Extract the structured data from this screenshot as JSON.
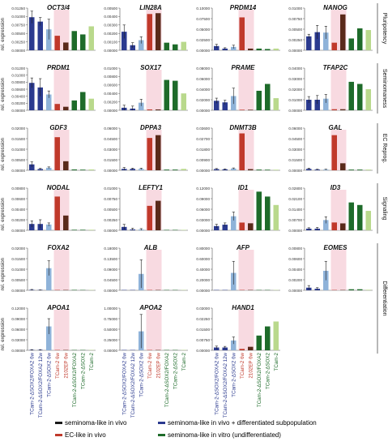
{
  "colors": {
    "seminoma_in_vivo": "#1a1a1a",
    "diff_blue": "#2b3a8f",
    "light_blue": "#8fb3d9",
    "ec_red": "#c0392b",
    "ec_pink_bg": "#f7d4dc",
    "green_dark": "#1e6b2a",
    "green_light": "#b9d98c"
  },
  "chart_data": {
    "type": "bar",
    "ylabel": "rel. expression",
    "categories": [
      "TCam-2-ΔSOX2/FOXA2 6w",
      "TCam-2-ΔSOX2/FOXA2 12w",
      "TCam-2-ΔSOX2 6w",
      "TCam-2 6w",
      "2102EP 6w",
      "TCam-2-ΔSOX2/FOXA2",
      "TCam-2-ΔSOX2",
      "TCam-2"
    ],
    "category_colors": [
      "#2b3a8f",
      "#2b3a8f",
      "#2b3a8f",
      "#c0392b",
      "#c0392b",
      "#1e6b2a",
      "#1e6b2a",
      "#1e6b2a"
    ],
    "groups": [
      "Pluripotency",
      "Seminomaness",
      "EC Reprog.",
      "Signaling",
      "Differentiation"
    ],
    "panels": [
      {
        "gene": "OCT3/4",
        "ylim": [
          0,
          0.0125
        ],
        "ticks": [
          "0.00000",
          "0.00250",
          "0.00500",
          "0.00750",
          "0.01000",
          "0.01250"
        ],
        "values": [
          0.0098,
          0.0085,
          0.0062,
          0.0043,
          0.0023,
          0.0057,
          0.0047,
          0.0071
        ],
        "errors": [
          0.0018,
          0.0012,
          0.003,
          0,
          0,
          0,
          0,
          0
        ]
      },
      {
        "gene": "LIN28A",
        "ylim": [
          0,
          0.005
        ],
        "ticks": [
          "0.00000",
          "0.00100",
          "0.00200",
          "0.00300",
          "0.00400",
          "0.00500"
        ],
        "values": [
          0.0022,
          0.0006,
          0.0012,
          0.0043,
          0.0044,
          0.0009,
          0.0007,
          0.001
        ],
        "errors": [
          0.0008,
          0.0003,
          0.0004,
          0,
          0,
          0,
          0,
          0
        ]
      },
      {
        "gene": "PRDM14",
        "ylim": [
          0,
          0.1
        ],
        "ticks": [
          "0.00000",
          "0.02500",
          "0.05000",
          "0.07500",
          "0.10000"
        ],
        "values": [
          0.01,
          0.004,
          0.008,
          0.078,
          0.004,
          0.004,
          0.003,
          0.004
        ],
        "errors": [
          0.004,
          0.002,
          0.004,
          0,
          0,
          0,
          0,
          0
        ]
      },
      {
        "gene": "NANOG",
        "ylim": [
          0,
          0.01
        ],
        "ticks": [
          "0.00000",
          "0.00250",
          "0.00500",
          "0.00750",
          "0.01000"
        ],
        "values": [
          0.0033,
          0.0043,
          0.0042,
          0.0018,
          0.0085,
          0.0028,
          0.0052,
          0.0048
        ],
        "errors": [
          0.0005,
          0.0016,
          0.0015,
          0,
          0,
          0,
          0,
          0
        ]
      },
      {
        "gene": "PRDM1",
        "ylim": [
          0,
          0.012
        ],
        "ticks": [
          "0.00000",
          "0.00200",
          "0.00400",
          "0.00600",
          "0.00800",
          "0.01000",
          "0.01200"
        ],
        "values": [
          0.0078,
          0.0065,
          0.0045,
          0.0018,
          0.001,
          0.0028,
          0.0052,
          0.0033
        ],
        "errors": [
          0.0014,
          0.0025,
          0.001,
          0,
          0,
          0,
          0,
          0
        ]
      },
      {
        "gene": "SOX17",
        "ylim": [
          0,
          0.01
        ],
        "ticks": [
          "0.00000",
          "0.00200",
          "0.00400",
          "0.00600",
          "0.00800",
          "0.01000"
        ],
        "values": [
          0.0006,
          0.0004,
          0.0018,
          0.0002,
          0.0002,
          0.0072,
          0.007,
          0.004
        ],
        "errors": [
          0.0006,
          0.0006,
          0.0008,
          0,
          0,
          0,
          0,
          0
        ]
      },
      {
        "gene": "PRAME",
        "ylim": [
          0,
          0.08
        ],
        "ticks": [
          "0.00000",
          "0.02000",
          "0.04000",
          "0.06000",
          "0.08000"
        ],
        "values": [
          0.018,
          0.015,
          0.027,
          0.001,
          0.001,
          0.037,
          0.05,
          0.023
        ],
        "errors": [
          0.005,
          0.004,
          0.015,
          0,
          0,
          0,
          0,
          0
        ]
      },
      {
        "gene": "TFAP2C",
        "ylim": [
          0,
          0.04
        ],
        "ticks": [
          "0.00000",
          "0.01000",
          "0.02000",
          "0.03000",
          "0.04000"
        ],
        "values": [
          0.01,
          0.01,
          0.011,
          0.001,
          0.001,
          0.027,
          0.025,
          0.02
        ],
        "errors": [
          0.003,
          0.004,
          0.004,
          0,
          0,
          0,
          0,
          0
        ]
      },
      {
        "gene": "GDF3",
        "ylim": [
          0,
          0.02
        ],
        "ticks": [
          "0.00000",
          "0.00500",
          "0.01000",
          "0.01500",
          "0.02000"
        ],
        "values": [
          0.0028,
          0.0006,
          0.0012,
          0.0157,
          0.0043,
          0.0004,
          0.0003,
          0.0004
        ],
        "errors": [
          0.0012,
          0.0003,
          0.0004,
          0,
          0,
          0,
          0,
          0
        ]
      },
      {
        "gene": "DPPA3",
        "ylim": [
          0,
          0.06
        ],
        "ticks": [
          "0.00000",
          "0.01500",
          "0.03000",
          "0.04500",
          "0.06000"
        ],
        "values": [
          0.002,
          0.002,
          0.002,
          0.046,
          0.05,
          0.001,
          0.001,
          0.002
        ],
        "errors": [
          0.002,
          0.001,
          0.001,
          0,
          0,
          0,
          0,
          0
        ]
      },
      {
        "gene": "DNMT3B",
        "ylim": [
          0,
          0.036
        ],
        "ticks": [
          "0.00000",
          "0.00900",
          "0.01800",
          "0.02700",
          "0.03600"
        ],
        "values": [
          0.001,
          0.0008,
          0.0015,
          0.0315,
          0.001,
          0.0006,
          0.0005,
          0.0005
        ],
        "errors": [
          0.0005,
          0.0004,
          0.0005,
          0,
          0,
          0,
          0,
          0
        ]
      },
      {
        "gene": "GAL",
        "ylim": [
          0,
          0.06
        ],
        "ticks": [
          "0.00000",
          "0.01500",
          "0.03000",
          "0.04500",
          "0.06000"
        ],
        "values": [
          0.002,
          0.001,
          0.001,
          0.05,
          0.01,
          0.001,
          0.001,
          0.001
        ],
        "errors": [
          0.001,
          0.0005,
          0.0005,
          0,
          0,
          0,
          0,
          0
        ]
      },
      {
        "gene": "NODAL",
        "ylim": [
          0,
          0.008
        ],
        "ticks": [
          "0.00000",
          "0.00200",
          "0.00400",
          "0.00600",
          "0.00800"
        ],
        "values": [
          0.0012,
          0.0012,
          0.0011,
          0.0064,
          0.0028,
          0.0001,
          0.0001,
          0.0001
        ],
        "errors": [
          0.0006,
          0.0008,
          0.0003,
          0,
          0,
          0,
          0,
          0
        ]
      },
      {
        "gene": "LEFTY1",
        "ylim": [
          0,
          0.01
        ],
        "ticks": [
          "0.00000",
          "0.00250",
          "0.00500",
          "0.00750",
          "0.01000"
        ],
        "values": [
          0.0008,
          0.0002,
          0.0002,
          0.0058,
          0.007,
          0.0001,
          0.0001,
          0.0001
        ],
        "errors": [
          0.0006,
          0.0003,
          0.0002,
          0,
          0,
          0,
          0,
          0
        ]
      },
      {
        "gene": "ID1",
        "ylim": [
          0,
          0.12
        ],
        "ticks": [
          "0.00000",
          "0.03000",
          "0.06000",
          "0.09000",
          "0.12000"
        ],
        "values": [
          0.012,
          0.016,
          0.04,
          0.022,
          0.02,
          0.11,
          0.096,
          0.072
        ],
        "errors": [
          0.005,
          0.005,
          0.012,
          0,
          0,
          0,
          0,
          0
        ]
      },
      {
        "gene": "ID3",
        "ylim": [
          0,
          0.028
        ],
        "ticks": [
          "0.00000",
          "0.00700",
          "0.01400",
          "0.02100",
          "0.02800"
        ],
        "values": [
          0.0011,
          0.0011,
          0.0068,
          0.0052,
          0.0046,
          0.0185,
          0.0168,
          0.0129
        ],
        "errors": [
          0.0006,
          0.0008,
          0.0022,
          0,
          0,
          0,
          0,
          0
        ]
      },
      {
        "gene": "FOXA2",
        "ylim": [
          0,
          0.02
        ],
        "ticks": [
          "0.00000",
          "0.00500",
          "0.01000",
          "0.01500",
          "0.02000"
        ],
        "values": [
          0.0002,
          0.0001,
          0.0105,
          0,
          0,
          0.0002,
          0.0001,
          0.0001
        ],
        "errors": [
          0.0002,
          0.0001,
          0.0035,
          0,
          0,
          0,
          0,
          0
        ]
      },
      {
        "gene": "ALB",
        "ylim": [
          0,
          0.18
        ],
        "ticks": [
          "0.00000",
          "0.04500",
          "0.09000",
          "0.13500",
          "0.18000"
        ],
        "values": [
          0,
          0,
          0.07,
          0,
          0,
          0,
          0,
          0
        ],
        "errors": [
          0,
          0,
          0.06,
          0,
          0,
          0,
          0,
          0
        ]
      },
      {
        "gene": "AFP",
        "ylim": [
          0,
          0.8
        ],
        "ticks": [
          "0.00000",
          "0.20000",
          "0.40000",
          "0.60000",
          "0.80000"
        ],
        "values": [
          0,
          0,
          0.33,
          0,
          0,
          0,
          0,
          0
        ],
        "errors": [
          0,
          0,
          0.22,
          0,
          0,
          0,
          0,
          0
        ]
      },
      {
        "gene": "EOMES",
        "ylim": [
          0,
          0.008
        ],
        "ticks": [
          "0.00000",
          "0.00200",
          "0.00400",
          "0.00600",
          "0.00800"
        ],
        "values": [
          0.0005,
          0.0003,
          0.0037,
          0,
          0,
          0.0002,
          0.0002,
          0.0001
        ],
        "errors": [
          0.0004,
          0.0002,
          0.0018,
          0,
          0,
          0,
          0,
          0
        ]
      },
      {
        "gene": "APOA1",
        "ylim": [
          0,
          0.12
        ],
        "ticks": [
          "0.00000",
          "0.03000",
          "0.06000",
          "0.09000",
          "0.12000"
        ],
        "values": [
          0.001,
          0.001,
          0.068,
          0,
          0,
          0,
          0,
          0
        ],
        "errors": [
          0.001,
          0.001,
          0.022,
          0,
          0,
          0,
          0,
          0
        ]
      },
      {
        "gene": "APOA2",
        "ylim": [
          0,
          1.0
        ],
        "ticks": [
          "0.00000",
          "0.25000",
          "0.50000",
          "0.75000",
          "1.00000"
        ],
        "values": [
          0,
          0,
          0.45,
          0,
          0,
          0,
          0,
          0
        ],
        "errors": [
          0,
          0,
          0.4,
          0,
          0,
          0,
          0,
          0
        ]
      },
      {
        "gene": "HAND1",
        "ylim": [
          0,
          0.03
        ],
        "ticks": [
          "0.00000",
          "0.00750",
          "0.01500",
          "0.02250",
          "0.03000"
        ],
        "values": [
          0.002,
          0.002,
          0.007,
          0.001,
          0.0025,
          0.0105,
          0.017,
          0.0205
        ],
        "errors": [
          0.001,
          0.0008,
          0.0025,
          0,
          0,
          0,
          0,
          0
        ]
      }
    ]
  },
  "legend": [
    {
      "label": "seminoma-like in vivo",
      "color": "#1a1a1a"
    },
    {
      "label": "seminoma-like in vivo + differentiated subpopulation",
      "color": "#2b3a8f"
    },
    {
      "label": "EC-like in vivo",
      "color": "#c0392b"
    },
    {
      "label": "seminoma-like in vitro (undifferentiated)",
      "color": "#1e6b2a"
    }
  ]
}
